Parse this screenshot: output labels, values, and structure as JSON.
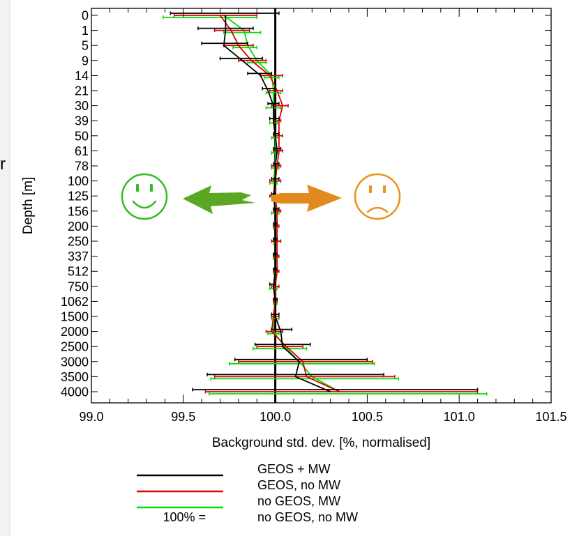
{
  "edge_fragment": "r",
  "legend": {
    "entries": [
      {
        "label": "GEOS + MW",
        "color": "#000000"
      },
      {
        "label": "GEOS, no MW",
        "color": "#e00000"
      },
      {
        "label": "no GEOS, MW",
        "color": "#00e000"
      },
      {
        "label": "no GEOS, no MW",
        "prefix": "100% =",
        "color": null
      }
    ]
  },
  "icons": {
    "happy": {
      "name": "smiley-happy-icon",
      "color": "#33bb22"
    },
    "sad": {
      "name": "smiley-sad-icon",
      "color": "#e8921a"
    },
    "left_arrow_color": "#5aa821",
    "right_arrow_color": "#e08a20"
  },
  "chart_data": {
    "type": "line",
    "xlabel": "Background std. dev. [%, normalised]",
    "ylabel": "Depth [m]",
    "xlim": [
      99.0,
      101.5
    ],
    "xticks": [
      99.0,
      99.5,
      100.0,
      100.5,
      101.0,
      101.5
    ],
    "xtick_labels": [
      "99.0",
      "99.5",
      "100.0",
      "100.5",
      "101.0",
      "101.5"
    ],
    "reference_line_x": 100.0,
    "depth_levels": [
      "0",
      "1",
      "5",
      "9",
      "14",
      "21",
      "30",
      "39",
      "50",
      "61",
      "78",
      "100",
      "125",
      "156",
      "200",
      "250",
      "337",
      "512",
      "750",
      "1062",
      "1500",
      "2000",
      "2500",
      "3000",
      "3500",
      "4000"
    ],
    "series": [
      {
        "name": "GEOS + MW",
        "color": "#000000",
        "values": [
          99.73,
          99.73,
          99.72,
          99.82,
          99.92,
          99.96,
          99.99,
          99.99,
          100.0,
          100.01,
          100.0,
          100.0,
          99.99,
          100.0,
          100.0,
          100.0,
          100.0,
          100.0,
          99.99,
          100.0,
          100.0,
          100.03,
          100.04,
          100.13,
          100.11,
          100.3
        ],
        "err_low": [
          99.43,
          99.58,
          99.6,
          99.7,
          99.85,
          99.93,
          99.96,
          99.97,
          99.99,
          99.99,
          99.99,
          99.98,
          99.98,
          99.99,
          99.99,
          99.99,
          99.99,
          99.99,
          99.97,
          99.99,
          99.98,
          99.98,
          99.89,
          99.78,
          99.63,
          99.55
        ],
        "err_high": [
          100.02,
          99.88,
          99.85,
          99.93,
          99.98,
          100.0,
          100.02,
          100.02,
          100.02,
          100.03,
          100.02,
          100.02,
          100.0,
          100.02,
          100.01,
          100.01,
          100.01,
          100.01,
          100.0,
          100.01,
          100.02,
          100.09,
          100.19,
          100.5,
          100.59,
          101.1
        ]
      },
      {
        "name": "GEOS, no MW",
        "color": "#e00000",
        "values": [
          99.7,
          99.76,
          99.8,
          99.87,
          99.97,
          100.01,
          100.04,
          100.02,
          100.02,
          100.02,
          100.01,
          100.0,
          100.0,
          100.01,
          100.01,
          100.01,
          100.01,
          100.01,
          100.0,
          100.0,
          99.99,
          99.98,
          100.06,
          100.15,
          100.17,
          100.35
        ],
        "err_low": [
          99.45,
          99.67,
          99.72,
          99.8,
          99.92,
          99.97,
          99.98,
          99.99,
          99.99,
          99.99,
          99.98,
          99.97,
          99.97,
          99.99,
          99.99,
          99.98,
          99.99,
          99.99,
          99.98,
          99.99,
          99.98,
          99.95,
          99.9,
          99.8,
          99.67,
          99.62
        ],
        "err_high": [
          99.9,
          99.86,
          99.88,
          99.95,
          100.04,
          100.04,
          100.07,
          100.03,
          100.04,
          100.04,
          100.03,
          100.03,
          100.03,
          100.03,
          100.02,
          100.03,
          100.02,
          100.02,
          100.02,
          100.01,
          100.02,
          100.04,
          100.15,
          100.53,
          100.65,
          101.1
        ]
      },
      {
        "name": "no GEOS, MW",
        "color": "#00e000",
        "values": [
          99.72,
          99.83,
          99.85,
          99.9,
          99.98,
          99.99,
          99.99,
          99.99,
          100.0,
          100.0,
          100.0,
          99.99,
          100.0,
          100.0,
          100.0,
          100.0,
          100.0,
          100.0,
          99.99,
          100.0,
          99.99,
          99.99,
          100.05,
          100.13,
          100.2,
          100.35
        ],
        "err_low": [
          99.39,
          99.72,
          99.77,
          99.85,
          99.94,
          99.95,
          99.95,
          99.97,
          99.98,
          99.98,
          99.98,
          99.97,
          99.98,
          99.98,
          99.99,
          99.99,
          99.99,
          99.99,
          99.97,
          99.99,
          99.98,
          99.96,
          99.88,
          99.75,
          99.65,
          99.64
        ],
        "err_high": [
          99.9,
          99.92,
          99.9,
          99.95,
          100.02,
          100.03,
          100.03,
          100.01,
          100.02,
          100.02,
          100.02,
          100.01,
          100.02,
          100.02,
          100.01,
          100.01,
          100.01,
          100.01,
          100.01,
          100.01,
          100.02,
          100.02,
          100.17,
          100.54,
          100.67,
          101.15
        ]
      }
    ]
  }
}
